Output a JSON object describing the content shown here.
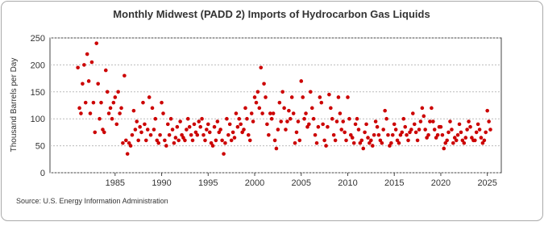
{
  "chart_data": {
    "type": "scatter",
    "title": "Monthly Midwest (PADD 2) Imports of Hydrocarbon Gas Liquids",
    "y_label": "Thousand Barrels per Day",
    "source": "Source: U.S. Energy Information Administration",
    "color": "#cc0000",
    "xlim": [
      1978,
      2026.5
    ],
    "ylim": [
      0,
      250
    ],
    "xticks": [
      1985,
      1990,
      1995,
      2000,
      2005,
      2010,
      2015,
      2020,
      2025
    ],
    "yticks": [
      0,
      50,
      100,
      150,
      200,
      250
    ],
    "grid": true,
    "x": [
      1981.0,
      1981.17,
      1981.33,
      1981.5,
      1981.67,
      1981.83,
      1982.0,
      1982.17,
      1982.33,
      1982.5,
      1982.67,
      1982.83,
      1983.0,
      1983.17,
      1983.33,
      1983.5,
      1983.67,
      1983.83,
      1984.0,
      1984.17,
      1984.33,
      1984.5,
      1984.67,
      1984.83,
      1985.0,
      1985.17,
      1985.33,
      1985.5,
      1985.67,
      1985.83,
      1986.0,
      1986.17,
      1986.33,
      1986.5,
      1986.67,
      1986.83,
      1987.0,
      1987.17,
      1987.33,
      1987.5,
      1987.67,
      1987.83,
      1988.0,
      1988.17,
      1988.33,
      1988.5,
      1988.67,
      1988.83,
      1989.0,
      1989.17,
      1989.33,
      1989.5,
      1989.67,
      1989.83,
      1990.0,
      1990.17,
      1990.33,
      1990.5,
      1990.67,
      1990.83,
      1991.0,
      1991.17,
      1991.33,
      1991.5,
      1991.67,
      1991.83,
      1992.0,
      1992.17,
      1992.33,
      1992.5,
      1992.67,
      1992.83,
      1993.0,
      1993.17,
      1993.33,
      1993.5,
      1993.67,
      1993.83,
      1994.0,
      1994.17,
      1994.33,
      1994.5,
      1994.67,
      1994.83,
      1995.0,
      1995.17,
      1995.33,
      1995.5,
      1995.67,
      1995.83,
      1996.0,
      1996.17,
      1996.33,
      1996.5,
      1996.67,
      1996.83,
      1997.0,
      1997.17,
      1997.33,
      1997.5,
      1997.67,
      1997.83,
      1998.0,
      1998.17,
      1998.33,
      1998.5,
      1998.67,
      1998.83,
      1999.0,
      1999.17,
      1999.33,
      1999.5,
      1999.67,
      1999.83,
      2000.0,
      2000.17,
      2000.33,
      2000.5,
      2000.67,
      2000.83,
      2001.0,
      2001.17,
      2001.33,
      2001.5,
      2001.67,
      2001.83,
      2002.0,
      2002.17,
      2002.33,
      2002.5,
      2002.67,
      2002.83,
      2003.0,
      2003.17,
      2003.33,
      2003.5,
      2003.67,
      2003.83,
      2004.0,
      2004.17,
      2004.33,
      2004.5,
      2004.67,
      2004.83,
      2005.0,
      2005.17,
      2005.33,
      2005.5,
      2005.67,
      2005.83,
      2006.0,
      2006.17,
      2006.33,
      2006.5,
      2006.67,
      2006.83,
      2007.0,
      2007.17,
      2007.33,
      2007.5,
      2007.67,
      2007.83,
      2008.0,
      2008.17,
      2008.33,
      2008.5,
      2008.67,
      2008.83,
      2009.0,
      2009.17,
      2009.33,
      2009.5,
      2009.67,
      2009.83,
      2010.0,
      2010.17,
      2010.33,
      2010.5,
      2010.67,
      2010.83,
      2011.0,
      2011.17,
      2011.33,
      2011.5,
      2011.67,
      2011.83,
      2012.0,
      2012.17,
      2012.33,
      2012.5,
      2012.67,
      2012.83,
      2013.0,
      2013.17,
      2013.33,
      2013.5,
      2013.67,
      2013.83,
      2014.0,
      2014.17,
      2014.33,
      2014.5,
      2014.67,
      2014.83,
      2015.0,
      2015.17,
      2015.33,
      2015.5,
      2015.67,
      2015.83,
      2016.0,
      2016.17,
      2016.33,
      2016.5,
      2016.67,
      2016.83,
      2017.0,
      2017.17,
      2017.33,
      2017.5,
      2017.67,
      2017.83,
      2018.0,
      2018.17,
      2018.33,
      2018.5,
      2018.67,
      2018.83,
      2019.0,
      2019.17,
      2019.33,
      2019.5,
      2019.67,
      2019.83,
      2020.0,
      2020.17,
      2020.33,
      2020.5,
      2020.67,
      2020.83,
      2021.0,
      2021.17,
      2021.33,
      2021.5,
      2021.67,
      2021.83,
      2022.0,
      2022.17,
      2022.33,
      2022.5,
      2022.67,
      2022.83,
      2023.0,
      2023.17,
      2023.33,
      2023.5,
      2023.67,
      2023.83,
      2024.0,
      2024.17,
      2024.33,
      2024.5,
      2024.67,
      2024.83,
      2025.0,
      2025.17,
      2025.33
    ],
    "values": [
      195,
      120,
      110,
      165,
      200,
      130,
      220,
      170,
      110,
      205,
      130,
      75,
      240,
      165,
      100,
      130,
      80,
      75,
      190,
      150,
      110,
      120,
      100,
      130,
      140,
      90,
      150,
      110,
      120,
      55,
      180,
      60,
      35,
      55,
      50,
      70,
      115,
      80,
      95,
      60,
      85,
      75,
      130,
      90,
      60,
      80,
      140,
      70,
      120,
      80,
      100,
      60,
      55,
      70,
      130,
      110,
      60,
      50,
      90,
      70,
      100,
      80,
      55,
      65,
      85,
      60,
      95,
      70,
      65,
      60,
      80,
      100,
      85,
      70,
      60,
      90,
      75,
      70,
      95,
      85,
      100,
      70,
      60,
      80,
      90,
      75,
      55,
      50,
      85,
      60,
      95,
      75,
      80,
      60,
      35,
      55,
      100,
      70,
      90,
      60,
      75,
      65,
      110,
      85,
      100,
      90,
      75,
      80,
      120,
      100,
      70,
      60,
      110,
      95,
      140,
      130,
      150,
      120,
      195,
      110,
      165,
      140,
      90,
      70,
      110,
      100,
      110,
      60,
      45,
      80,
      130,
      95,
      150,
      120,
      80,
      95,
      115,
      100,
      140,
      110,
      55,
      75,
      95,
      60,
      170,
      140,
      100,
      110,
      85,
      90,
      150,
      120,
      100,
      70,
      55,
      85,
      140,
      130,
      90,
      60,
      50,
      85,
      145,
      120,
      100,
      70,
      60,
      95,
      140,
      110,
      80,
      95,
      75,
      60,
      140,
      100,
      70,
      65,
      55,
      90,
      100,
      80,
      55,
      60,
      45,
      75,
      90,
      65,
      55,
      60,
      50,
      70,
      95,
      85,
      70,
      60,
      55,
      80,
      115,
      100,
      70,
      50,
      55,
      70,
      90,
      80,
      60,
      55,
      70,
      75,
      100,
      85,
      70,
      60,
      75,
      80,
      110,
      90,
      75,
      60,
      80,
      95,
      120,
      105,
      80,
      65,
      70,
      95,
      120,
      95,
      80,
      65,
      70,
      85,
      85,
      70,
      45,
      55,
      60,
      75,
      95,
      80,
      55,
      65,
      60,
      70,
      90,
      75,
      60,
      55,
      65,
      80,
      95,
      85,
      65,
      60,
      60,
      75,
      90,
      80,
      65,
      55,
      60,
      75,
      115,
      95,
      80
    ]
  }
}
